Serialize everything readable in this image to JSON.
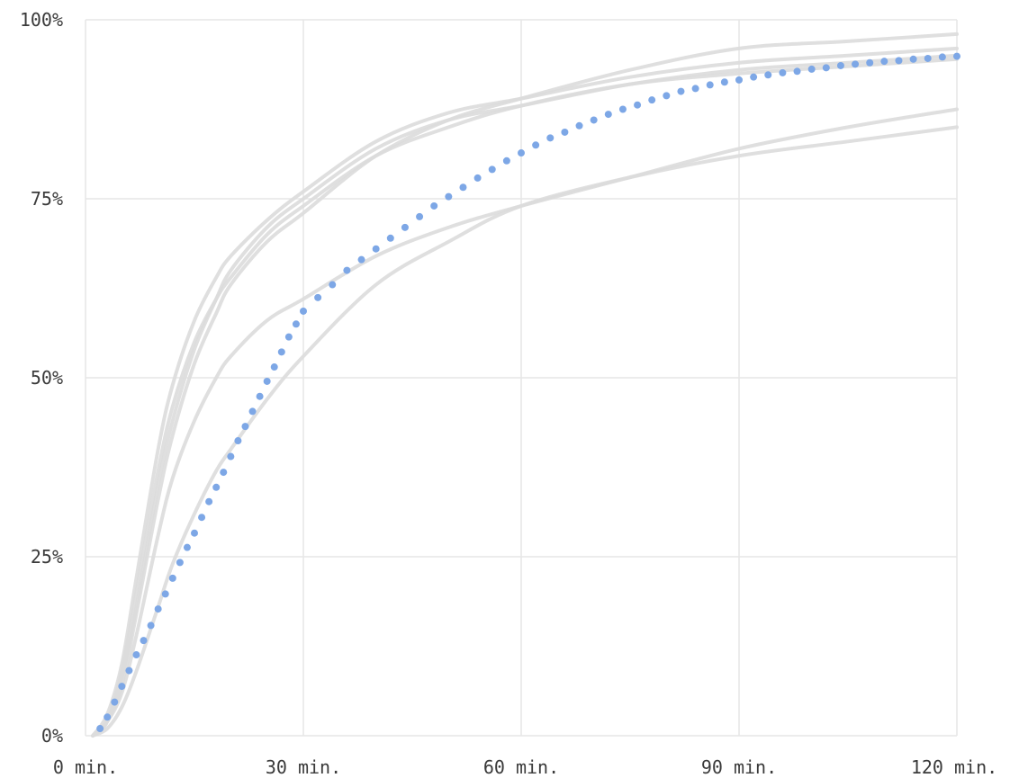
{
  "chart_data": {
    "type": "line",
    "title": "",
    "xlabel": "",
    "ylabel": "",
    "xlim": [
      0,
      120
    ],
    "ylim": [
      0,
      100
    ],
    "grid": true,
    "legend": "none",
    "xticks": [
      {
        "value": 0,
        "label": "0 min."
      },
      {
        "value": 30,
        "label": "30 min."
      },
      {
        "value": 60,
        "label": "60 min."
      },
      {
        "value": 90,
        "label": "90 min."
      },
      {
        "value": 120,
        "label": "120 min."
      }
    ],
    "yticks": [
      {
        "value": 0,
        "label": "0%"
      },
      {
        "value": 25,
        "label": "25%"
      },
      {
        "value": 50,
        "label": "50%"
      },
      {
        "value": 75,
        "label": "75%"
      },
      {
        "value": 100,
        "label": "100%"
      }
    ],
    "background_series": [
      {
        "x": [
          1,
          3,
          5,
          7,
          10,
          12,
          15,
          18,
          20,
          25,
          30,
          40,
          50,
          60,
          75,
          90,
          105,
          120
        ],
        "y": [
          0,
          2,
          8,
          18,
          35,
          44,
          54,
          61,
          65,
          71,
          75,
          82,
          86,
          88,
          91,
          93,
          94,
          95
        ]
      },
      {
        "x": [
          1,
          3,
          5,
          7,
          10,
          12,
          15,
          18,
          20,
          25,
          30,
          40,
          50,
          60,
          75,
          90,
          105,
          120
        ],
        "y": [
          0,
          3,
          10,
          22,
          40,
          49,
          58,
          64,
          67,
          72,
          76,
          83,
          87,
          89,
          92,
          94,
          95,
          96
        ]
      },
      {
        "x": [
          1,
          3,
          5,
          7,
          10,
          12,
          15,
          18,
          20,
          25,
          30,
          40,
          50,
          60,
          75,
          90,
          105,
          120
        ],
        "y": [
          0,
          2,
          7,
          17,
          33,
          42,
          52,
          59,
          63,
          69,
          73,
          81,
          86,
          89,
          93,
          96,
          97,
          98
        ]
      },
      {
        "x": [
          1,
          3,
          5,
          7,
          10,
          12,
          15,
          18,
          20,
          25,
          30,
          40,
          50,
          60,
          75,
          90,
          105,
          120
        ],
        "y": [
          0,
          2,
          6,
          14,
          28,
          36,
          44,
          50,
          53,
          58,
          61,
          67,
          71,
          74,
          78,
          82,
          85,
          87.5
        ]
      },
      {
        "x": [
          1,
          3,
          5,
          7,
          10,
          12,
          15,
          18,
          20,
          25,
          30,
          40,
          50,
          60,
          75,
          90,
          105,
          120
        ],
        "y": [
          0,
          1,
          4,
          9,
          18,
          24,
          31,
          37,
          40,
          47,
          53,
          63,
          69,
          74,
          78,
          81,
          83,
          85
        ]
      },
      {
        "x": [
          1,
          3,
          5,
          7,
          10,
          12,
          15,
          18,
          20,
          25,
          30,
          40,
          50,
          60,
          75,
          90,
          105,
          120
        ],
        "y": [
          0,
          2,
          9,
          20,
          37,
          46,
          55,
          61,
          64,
          70,
          74,
          81,
          85,
          88,
          91,
          92.5,
          93.5,
          94.5
        ]
      }
    ],
    "series": [
      {
        "style": "dotted",
        "x": [
          2,
          3,
          4,
          5,
          6,
          7,
          8,
          9,
          10,
          11,
          12,
          13,
          14,
          15,
          16,
          17,
          18,
          19,
          20,
          21,
          22,
          23,
          24,
          25,
          26,
          27,
          28,
          29,
          30,
          32,
          34,
          36,
          38,
          40,
          42,
          44,
          46,
          48,
          50,
          52,
          54,
          56,
          58,
          60,
          62,
          64,
          66,
          68,
          70,
          72,
          74,
          76,
          78,
          80,
          82,
          84,
          86,
          88,
          90,
          92,
          94,
          96,
          98,
          100,
          102,
          104,
          106,
          108,
          110,
          112,
          114,
          116,
          118,
          120
        ],
        "y": [
          1,
          2.6,
          4.7,
          6.9,
          9.1,
          11.3,
          13.3,
          15.4,
          17.7,
          19.8,
          22,
          24.2,
          26.3,
          28.3,
          30.5,
          32.7,
          34.7,
          36.8,
          39,
          41.2,
          43.2,
          45.3,
          47.4,
          49.5,
          51.5,
          53.6,
          55.7,
          57.5,
          59.3,
          61.2,
          63,
          65,
          66.5,
          68,
          69.5,
          71,
          72.5,
          74,
          75.3,
          76.6,
          77.9,
          79.1,
          80.3,
          81.4,
          82.5,
          83.5,
          84.3,
          85.2,
          86,
          86.8,
          87.5,
          88.1,
          88.8,
          89.4,
          90,
          90.4,
          90.9,
          91.3,
          91.6,
          92,
          92.3,
          92.6,
          92.8,
          93.1,
          93.3,
          93.6,
          93.8,
          94,
          94.2,
          94.3,
          94.5,
          94.6,
          94.8,
          94.9
        ],
        "color": "#7da7e6"
      }
    ],
    "colors": {
      "background_line": "#dcdcdc",
      "grid": "#e6e6e6",
      "axis": "#dddddd",
      "highlight": "#7da7e6"
    }
  }
}
